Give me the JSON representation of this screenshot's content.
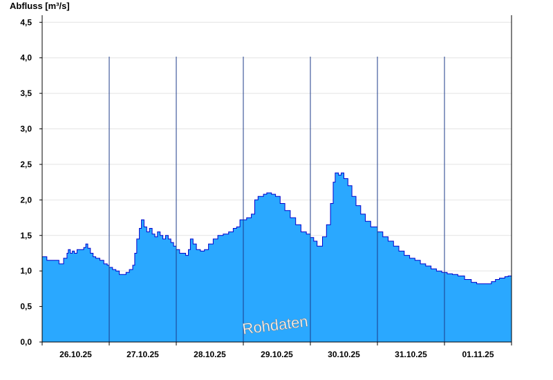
{
  "chart_data": {
    "type": "area",
    "title": "",
    "ylabel": "Abfluss [m³/s]",
    "xlabel": "",
    "watermark": "Rohdaten",
    "ylim": [
      0,
      4.6
    ],
    "xlim": [
      0,
      7
    ],
    "grid": true,
    "fill_color": "#2aa8ff",
    "line_color": "#0000cc",
    "y_ticks": [
      {
        "value": 0.0,
        "label": "0,0"
      },
      {
        "value": 0.5,
        "label": "0,5"
      },
      {
        "value": 1.0,
        "label": "1,0"
      },
      {
        "value": 1.5,
        "label": "1,5"
      },
      {
        "value": 2.0,
        "label": "2,0"
      },
      {
        "value": 2.5,
        "label": "2,5"
      },
      {
        "value": 3.0,
        "label": "3,0"
      },
      {
        "value": 3.5,
        "label": "3,5"
      },
      {
        "value": 4.0,
        "label": "4,0"
      },
      {
        "value": 4.5,
        "label": "4,5"
      }
    ],
    "x_ticks": [
      {
        "value": 0.5,
        "label": "26.10.25"
      },
      {
        "value": 1.5,
        "label": "27.10.25"
      },
      {
        "value": 2.5,
        "label": "28.10.25"
      },
      {
        "value": 3.5,
        "label": "29.10.25"
      },
      {
        "value": 4.5,
        "label": "30.10.25"
      },
      {
        "value": 5.5,
        "label": "31.10.25"
      },
      {
        "value": 6.5,
        "label": "01.11.25"
      }
    ],
    "day_boundaries": [
      1,
      2,
      3,
      4,
      5,
      6
    ],
    "x_unit": "days since 26.10.25 00:00",
    "series": [
      {
        "points": [
          [
            0.0,
            1.2
          ],
          [
            0.05,
            1.2
          ],
          [
            0.07,
            1.15
          ],
          [
            0.22,
            1.15
          ],
          [
            0.25,
            1.1
          ],
          [
            0.28,
            1.1
          ],
          [
            0.32,
            1.18
          ],
          [
            0.37,
            1.25
          ],
          [
            0.39,
            1.3
          ],
          [
            0.42,
            1.25
          ],
          [
            0.45,
            1.28
          ],
          [
            0.48,
            1.25
          ],
          [
            0.52,
            1.3
          ],
          [
            0.58,
            1.3
          ],
          [
            0.62,
            1.33
          ],
          [
            0.65,
            1.38
          ],
          [
            0.68,
            1.32
          ],
          [
            0.72,
            1.25
          ],
          [
            0.76,
            1.2
          ],
          [
            0.8,
            1.18
          ],
          [
            0.86,
            1.15
          ],
          [
            0.92,
            1.1
          ],
          [
            0.97,
            1.08
          ],
          [
            1.0,
            1.05
          ],
          [
            1.05,
            1.02
          ],
          [
            1.1,
            1.0
          ],
          [
            1.15,
            0.95
          ],
          [
            1.2,
            0.95
          ],
          [
            1.25,
            0.98
          ],
          [
            1.3,
            1.02
          ],
          [
            1.35,
            1.08
          ],
          [
            1.38,
            1.25
          ],
          [
            1.41,
            1.45
          ],
          [
            1.45,
            1.6
          ],
          [
            1.48,
            1.72
          ],
          [
            1.52,
            1.62
          ],
          [
            1.56,
            1.55
          ],
          [
            1.6,
            1.6
          ],
          [
            1.64,
            1.52
          ],
          [
            1.68,
            1.48
          ],
          [
            1.72,
            1.55
          ],
          [
            1.76,
            1.5
          ],
          [
            1.8,
            1.45
          ],
          [
            1.84,
            1.5
          ],
          [
            1.88,
            1.45
          ],
          [
            1.92,
            1.4
          ],
          [
            1.96,
            1.35
          ],
          [
            2.0,
            1.3
          ],
          [
            2.05,
            1.25
          ],
          [
            2.1,
            1.25
          ],
          [
            2.14,
            1.22
          ],
          [
            2.18,
            1.3
          ],
          [
            2.21,
            1.45
          ],
          [
            2.25,
            1.38
          ],
          [
            2.3,
            1.3
          ],
          [
            2.36,
            1.28
          ],
          [
            2.42,
            1.3
          ],
          [
            2.48,
            1.38
          ],
          [
            2.55,
            1.45
          ],
          [
            2.62,
            1.5
          ],
          [
            2.7,
            1.52
          ],
          [
            2.78,
            1.55
          ],
          [
            2.85,
            1.6
          ],
          [
            2.9,
            1.62
          ],
          [
            2.95,
            1.72
          ],
          [
            3.0,
            1.72
          ],
          [
            3.05,
            1.75
          ],
          [
            3.12,
            1.8
          ],
          [
            3.17,
            2.0
          ],
          [
            3.22,
            2.05
          ],
          [
            3.3,
            2.08
          ],
          [
            3.35,
            2.1
          ],
          [
            3.42,
            2.08
          ],
          [
            3.48,
            2.05
          ],
          [
            3.55,
            1.95
          ],
          [
            3.62,
            1.85
          ],
          [
            3.7,
            1.75
          ],
          [
            3.78,
            1.65
          ],
          [
            3.86,
            1.55
          ],
          [
            3.94,
            1.52
          ],
          [
            4.0,
            1.47
          ],
          [
            4.05,
            1.42
          ],
          [
            4.1,
            1.35
          ],
          [
            4.13,
            1.35
          ],
          [
            4.18,
            1.48
          ],
          [
            4.24,
            1.65
          ],
          [
            4.3,
            1.95
          ],
          [
            4.34,
            2.25
          ],
          [
            4.37,
            2.38
          ],
          [
            4.42,
            2.35
          ],
          [
            4.46,
            2.38
          ],
          [
            4.5,
            2.3
          ],
          [
            4.56,
            2.2
          ],
          [
            4.62,
            2.05
          ],
          [
            4.68,
            1.92
          ],
          [
            4.75,
            1.8
          ],
          [
            4.82,
            1.7
          ],
          [
            4.9,
            1.62
          ],
          [
            5.0,
            1.55
          ],
          [
            5.08,
            1.48
          ],
          [
            5.16,
            1.42
          ],
          [
            5.24,
            1.35
          ],
          [
            5.32,
            1.28
          ],
          [
            5.4,
            1.22
          ],
          [
            5.48,
            1.18
          ],
          [
            5.56,
            1.15
          ],
          [
            5.64,
            1.1
          ],
          [
            5.72,
            1.07
          ],
          [
            5.8,
            1.03
          ],
          [
            5.88,
            1.0
          ],
          [
            5.96,
            0.98
          ],
          [
            6.04,
            0.96
          ],
          [
            6.12,
            0.95
          ],
          [
            6.2,
            0.93
          ],
          [
            6.3,
            0.88
          ],
          [
            6.4,
            0.84
          ],
          [
            6.48,
            0.82
          ],
          [
            6.56,
            0.82
          ],
          [
            6.64,
            0.82
          ],
          [
            6.7,
            0.85
          ],
          [
            6.76,
            0.88
          ],
          [
            6.82,
            0.9
          ],
          [
            6.9,
            0.92
          ],
          [
            6.95,
            0.93
          ],
          [
            7.0,
            0.96
          ]
        ]
      }
    ]
  }
}
